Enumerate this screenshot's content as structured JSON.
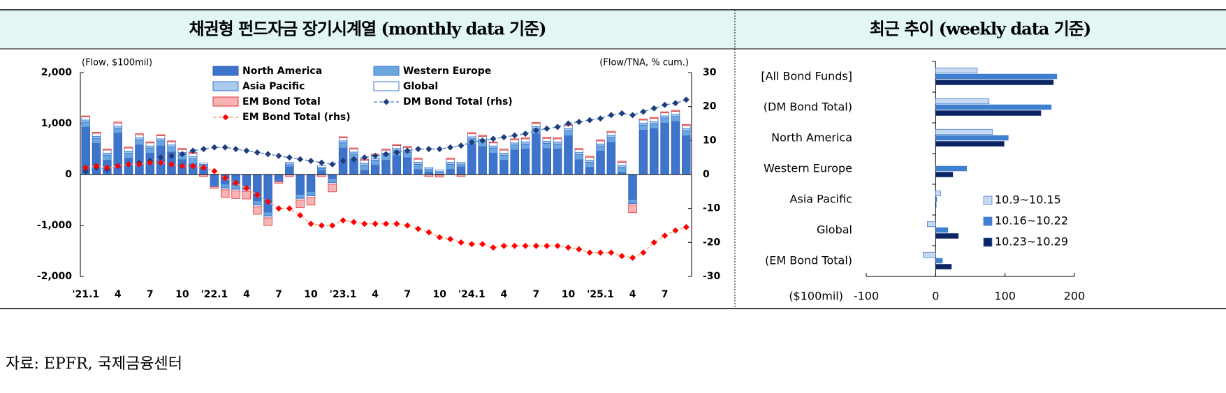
{
  "chart_data": [
    {
      "type": "stacked-bar-line",
      "title": "채권형 펀드자금 장기시계열 (monthly data 기준)",
      "ylabel": "(Flow, $100mil)",
      "y2label": "(Flow/TNA, % cum.)",
      "categories": [
        "'21.1",
        null,
        null,
        "4",
        null,
        null,
        "7",
        null,
        null,
        "10",
        null,
        null,
        "'22.1",
        null,
        null,
        "4",
        null,
        null,
        "7",
        null,
        null,
        "10",
        null,
        null,
        "'23.1",
        null,
        null,
        "4",
        null,
        null,
        "7",
        null,
        null,
        "10",
        null,
        null,
        "'24.1",
        null,
        null,
        "4",
        null,
        null,
        "7",
        null,
        null,
        "10",
        null,
        null,
        "'25.1",
        null,
        null,
        "4",
        null,
        null,
        "7",
        null,
        null
      ],
      "ylim": [
        -2000,
        2000
      ],
      "yticks": [
        {
          "value": -2000,
          "label": "-2,000"
        },
        {
          "value": -1000,
          "label": "-1,000"
        },
        0,
        {
          "value": 1000,
          "label": "1,000"
        },
        {
          "value": 2000,
          "label": "2,000"
        }
      ],
      "y2lim": [
        -30,
        30
      ],
      "y2ticks": [
        -30,
        -20,
        -10,
        0,
        10,
        20,
        30
      ],
      "series": [
        {
          "name": "North America",
          "type": "bar",
          "color": "#2f5fb0",
          "fill": "#3d74cc",
          "values": [
            930,
            610,
            280,
            810,
            320,
            580,
            420,
            560,
            440,
            290,
            210,
            140,
            -200,
            -190,
            -210,
            -220,
            -520,
            -740,
            -100,
            150,
            -390,
            -340,
            80,
            -80,
            520,
            300,
            80,
            180,
            280,
            370,
            330,
            100,
            50,
            -10,
            100,
            150,
            600,
            550,
            420,
            280,
            480,
            500,
            800,
            510,
            500,
            760,
            290,
            140,
            460,
            630,
            40,
            -490,
            870,
            900,
            1010,
            1040,
            760
          ]
        },
        {
          "name": "Western Europe",
          "type": "bar",
          "color": "#3d74cc",
          "fill": "#6aa6e0",
          "values": [
            100,
            100,
            100,
            100,
            100,
            100,
            100,
            100,
            100,
            100,
            100,
            40,
            -20,
            -60,
            -60,
            -60,
            -60,
            -60,
            -20,
            40,
            -60,
            -60,
            40,
            -60,
            100,
            100,
            100,
            100,
            100,
            100,
            100,
            100,
            40,
            40,
            100,
            40,
            100,
            100,
            100,
            100,
            100,
            100,
            100,
            100,
            100,
            100,
            100,
            100,
            100,
            100,
            100,
            -60,
            100,
            100,
            100,
            100,
            100
          ]
        },
        {
          "name": "Asia Pacific",
          "type": "bar",
          "color": "#3d74cc",
          "fill": "#a9ccee",
          "values": [
            40,
            40,
            40,
            40,
            40,
            40,
            40,
            40,
            40,
            40,
            40,
            20,
            -10,
            -20,
            -20,
            -20,
            -20,
            -20,
            -10,
            20,
            -20,
            -20,
            20,
            -20,
            40,
            40,
            40,
            40,
            40,
            40,
            40,
            40,
            20,
            20,
            40,
            20,
            40,
            40,
            40,
            40,
            40,
            40,
            40,
            40,
            40,
            40,
            40,
            40,
            40,
            40,
            40,
            -20,
            40,
            40,
            40,
            40,
            40
          ]
        },
        {
          "name": "Global",
          "type": "bar",
          "color": "#3d74cc",
          "fill": "#ffffff",
          "values": [
            60,
            60,
            60,
            60,
            60,
            60,
            60,
            60,
            60,
            60,
            60,
            30,
            -10,
            -30,
            -30,
            -30,
            -30,
            -30,
            -10,
            30,
            -30,
            -30,
            30,
            -30,
            60,
            60,
            60,
            60,
            60,
            60,
            60,
            60,
            30,
            30,
            60,
            30,
            60,
            60,
            60,
            60,
            60,
            60,
            60,
            60,
            60,
            60,
            60,
            60,
            60,
            60,
            60,
            -30,
            60,
            60,
            60,
            60,
            60
          ]
        },
        {
          "name": "EM Bond Total",
          "type": "bar",
          "color": "#e03030",
          "fill": "#f8b4b4",
          "values": [
            20,
            20,
            20,
            20,
            20,
            20,
            20,
            20,
            20,
            20,
            20,
            -40,
            -30,
            -150,
            -150,
            -150,
            -150,
            -150,
            -30,
            -40,
            -150,
            -150,
            -40,
            -150,
            20,
            20,
            20,
            20,
            20,
            20,
            20,
            20,
            -40,
            -40,
            20,
            -40,
            20,
            20,
            20,
            20,
            20,
            20,
            20,
            20,
            20,
            20,
            20,
            20,
            20,
            20,
            20,
            -150,
            20,
            20,
            20,
            20,
            20
          ]
        },
        {
          "name": "DM Bond Total (rhs)",
          "type": "line",
          "axis": "y2",
          "color": "#5b8fd6",
          "marker_color": "#1f3d7a",
          "values": [
            1,
            2,
            1.5,
            2.5,
            3,
            3.5,
            4,
            5,
            5.5,
            6,
            7,
            7.5,
            8,
            8,
            7.5,
            7,
            6.5,
            6,
            5.5,
            5,
            4.5,
            4,
            3.5,
            3,
            4,
            4.5,
            5,
            5.5,
            6,
            6.5,
            7,
            7.5,
            7.5,
            7.5,
            8,
            8.5,
            9.5,
            10,
            10.5,
            11,
            11.5,
            12,
            13,
            13.5,
            14,
            15,
            15.5,
            16,
            16.5,
            17.5,
            18,
            17.5,
            18.5,
            19.5,
            20.5,
            21,
            22
          ]
        },
        {
          "name": "EM Bond Total (rhs)",
          "type": "line",
          "axis": "y2",
          "color": "#f4b183",
          "marker_color": "#ff0000",
          "values": [
            2,
            2.5,
            2,
            2.5,
            3,
            3,
            3.5,
            3.5,
            3,
            2.5,
            2.5,
            2,
            1,
            -1,
            -2.5,
            -4,
            -6,
            -8,
            -10,
            -10,
            -12,
            -14.5,
            -15,
            -15,
            -13.5,
            -14,
            -14.5,
            -14.5,
            -14.5,
            -14.5,
            -15,
            -16,
            -17,
            -18.5,
            -19,
            -20,
            -20.5,
            -20.5,
            -21.5,
            -21,
            -21,
            -21,
            -21,
            -21,
            -21,
            -21.5,
            -22,
            -23,
            -23,
            -23,
            -24,
            -24.5,
            -23,
            -20,
            -18,
            -16.5,
            -15.5
          ]
        }
      ]
    },
    {
      "type": "hbar",
      "title": "최근 추이 (weekly data 기준)",
      "xlabel": "($100mil)",
      "categories": [
        "[All Bond Funds]",
        "(DM Bond Total)",
        "North America",
        "Western Europe",
        "Asia Pacific",
        "Global",
        "(EM Bond Total)"
      ],
      "xlim": [
        -100,
        200
      ],
      "xticks": [
        -100,
        0,
        100,
        200
      ],
      "series": [
        {
          "name": "10.9~10.15",
          "color": "#c6d9f0",
          "values": [
            60,
            77,
            82,
            0,
            7,
            -12,
            -18
          ]
        },
        {
          "name": "10.16~10.22",
          "color": "#3f7fcf",
          "values": [
            175,
            167,
            105,
            45,
            2,
            18,
            10
          ]
        },
        {
          "name": "10.23~10.29",
          "color": "#0c2464",
          "values": [
            170,
            152,
            99,
            25,
            1,
            33,
            23
          ]
        }
      ]
    }
  ],
  "source": "자료: EPFR, 국제금융센터"
}
